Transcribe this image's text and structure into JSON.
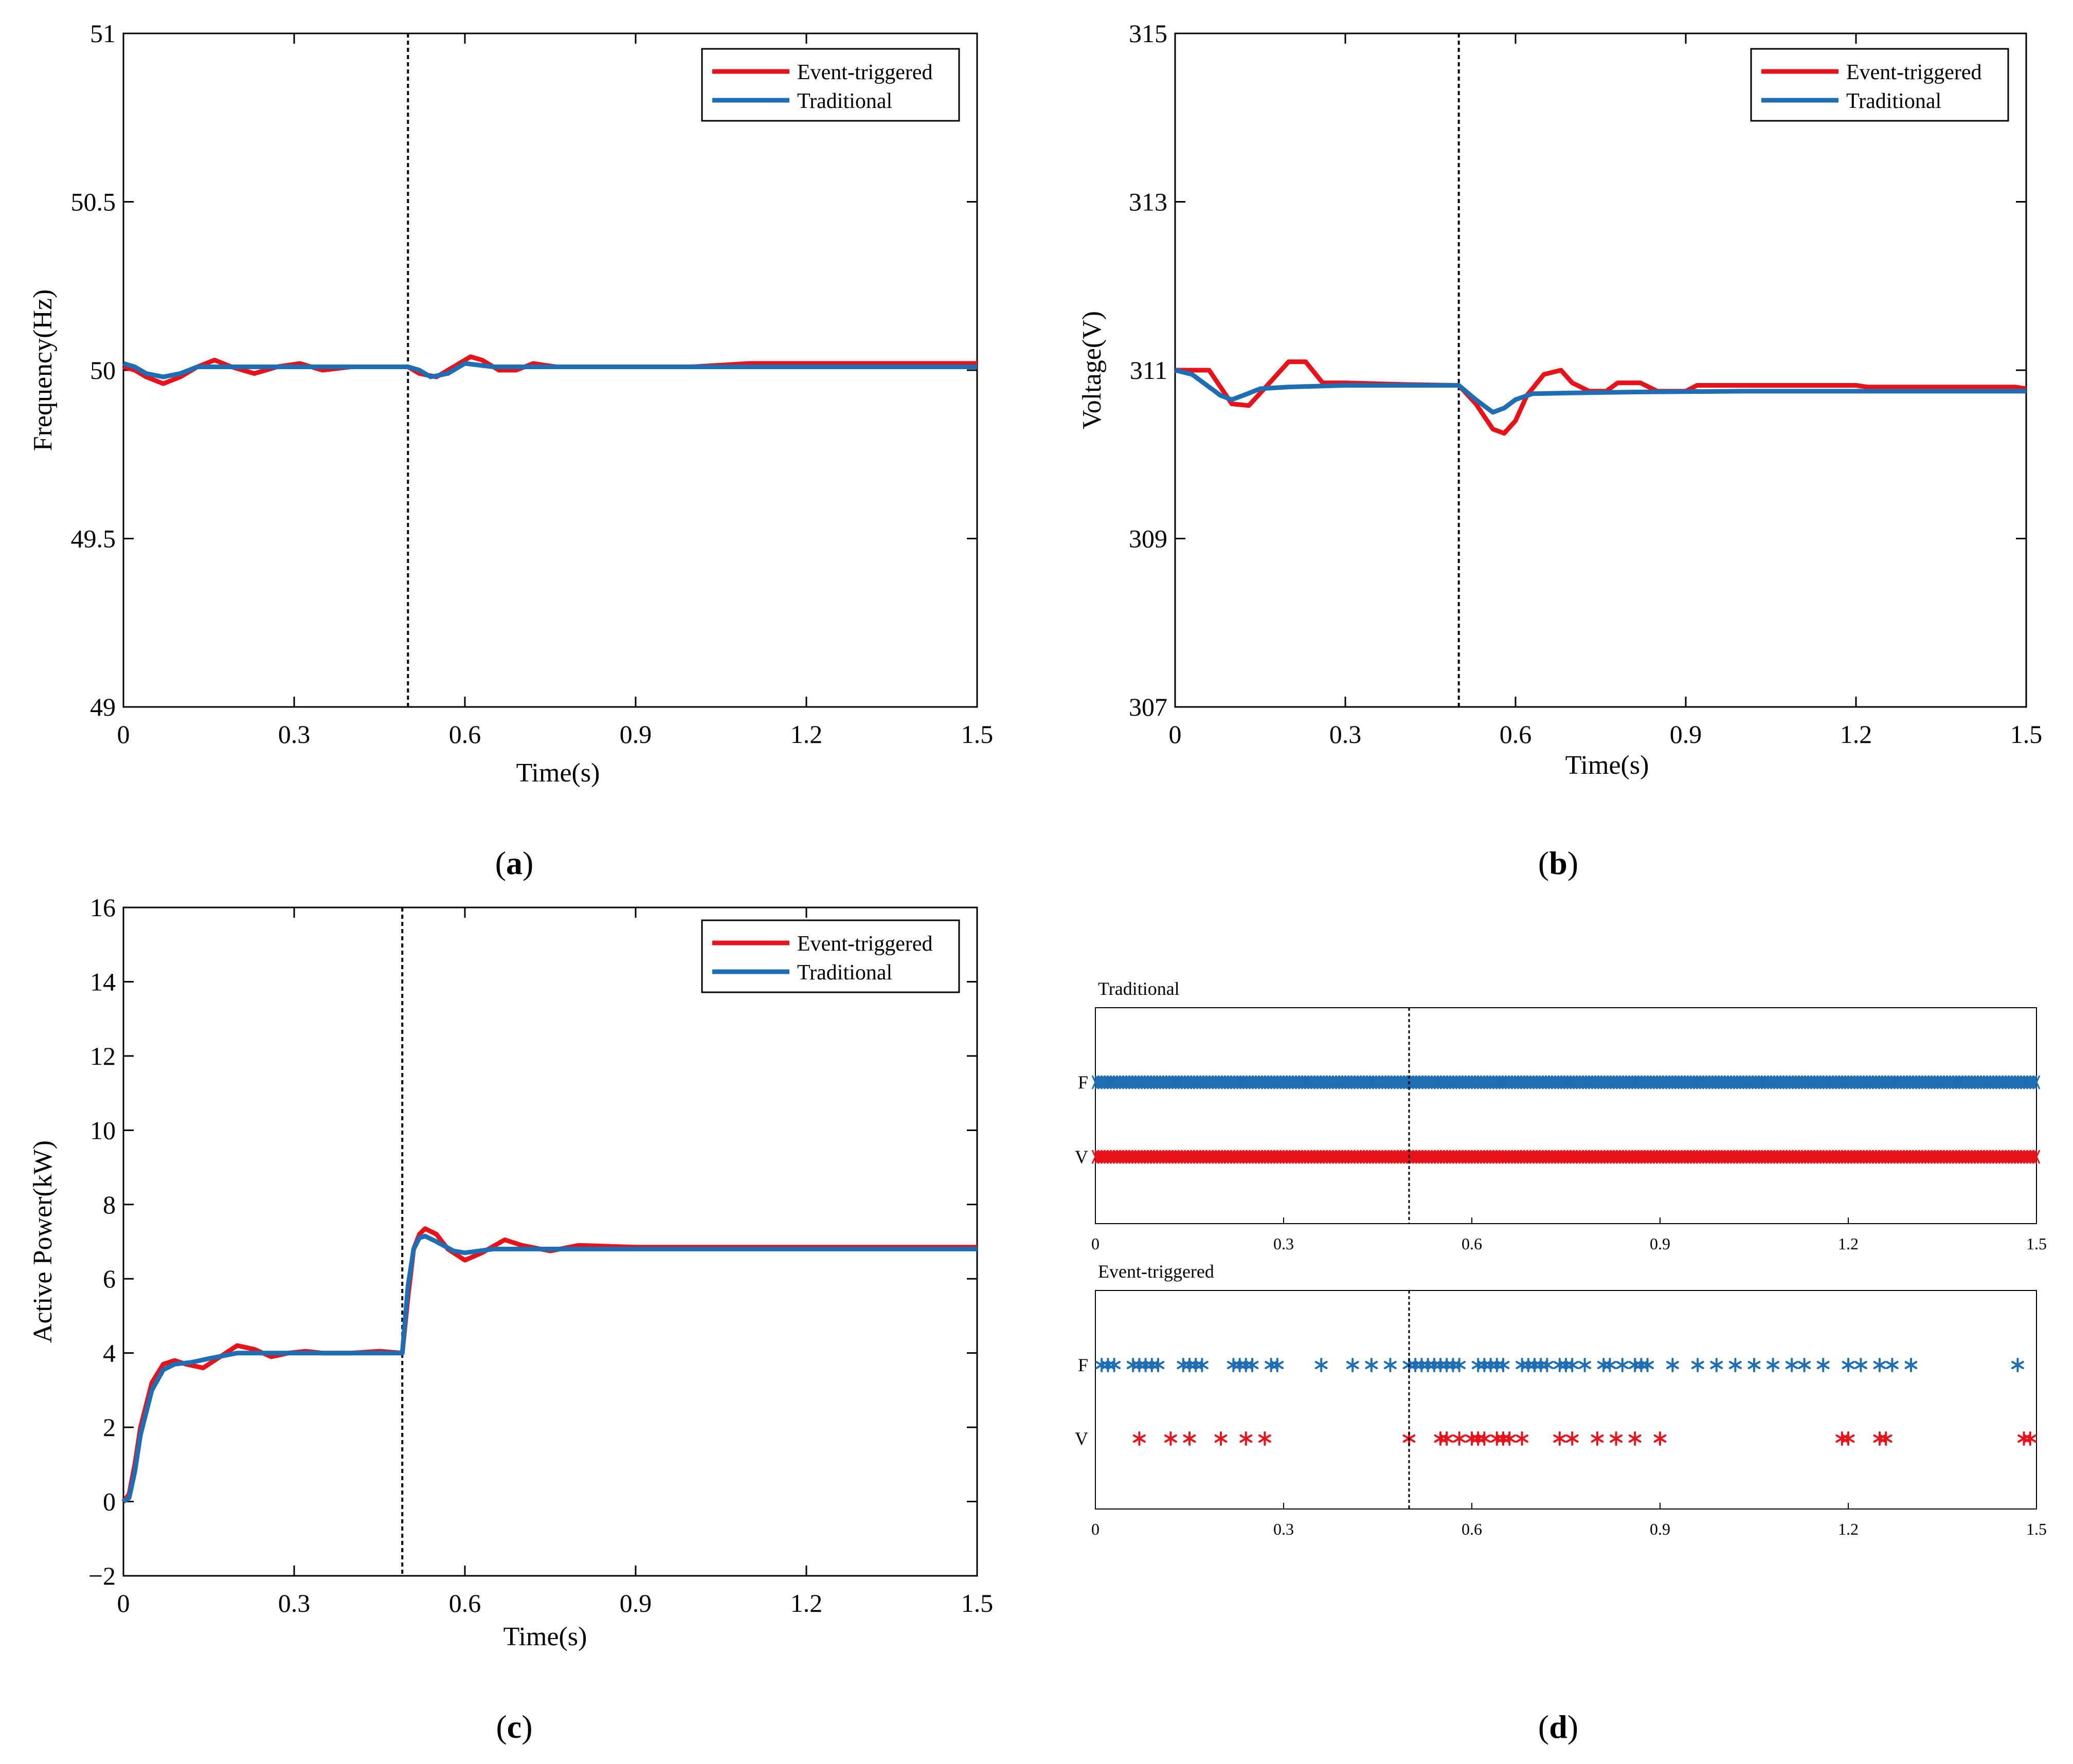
{
  "colors": {
    "event": "#e8121b",
    "traditional": "#1f6db3",
    "axis": "#000000",
    "vline": "#000000"
  },
  "chart_data": [
    {
      "id": "a",
      "type": "line",
      "caption": {
        "open": "(",
        "letter": "a",
        "close": ")"
      },
      "xlabel": "Time(s)",
      "ylabel": "Frequency(Hz)",
      "xlim": [
        0,
        1.5
      ],
      "ylim": [
        49,
        51
      ],
      "xticks": [
        0,
        0.3,
        0.6,
        0.9,
        1.2,
        1.5
      ],
      "xtick_labels": [
        "0",
        "0.3",
        "0.6",
        "0.9",
        "1.2",
        "1.5"
      ],
      "yticks": [
        49,
        49.5,
        50,
        50.5,
        51
      ],
      "ytick_labels": [
        "49",
        "49.5",
        "50",
        "50.5",
        "51"
      ],
      "event_line_x": 0.5,
      "legend": {
        "position": "top-right",
        "entries": [
          "Event-triggered",
          "Traditional"
        ]
      },
      "series": [
        {
          "name": "Event-triggered",
          "color": "#e8121b",
          "x": [
            0,
            0.02,
            0.04,
            0.07,
            0.1,
            0.13,
            0.16,
            0.19,
            0.23,
            0.27,
            0.31,
            0.35,
            0.4,
            0.45,
            0.5,
            0.52,
            0.55,
            0.58,
            0.61,
            0.63,
            0.66,
            0.69,
            0.72,
            0.76,
            0.8,
            0.85,
            0.9,
            1.0,
            1.1,
            1.2,
            1.3,
            1.4,
            1.5
          ],
          "y": [
            50.01,
            50.0,
            49.98,
            49.96,
            49.98,
            50.01,
            50.03,
            50.01,
            49.99,
            50.01,
            50.02,
            50.0,
            50.01,
            50.01,
            50.01,
            49.99,
            49.98,
            50.01,
            50.04,
            50.03,
            50.0,
            50.0,
            50.02,
            50.01,
            50.01,
            50.01,
            50.01,
            50.01,
            50.02,
            50.02,
            50.02,
            50.02,
            50.02
          ]
        },
        {
          "name": "Traditional",
          "color": "#1f6db3",
          "x": [
            0,
            0.02,
            0.04,
            0.07,
            0.1,
            0.13,
            0.2,
            0.3,
            0.4,
            0.5,
            0.52,
            0.54,
            0.57,
            0.6,
            0.65,
            0.7,
            0.8,
            1.0,
            1.2,
            1.5
          ],
          "y": [
            50.02,
            50.01,
            49.99,
            49.98,
            49.99,
            50.01,
            50.01,
            50.01,
            50.01,
            50.01,
            50.0,
            49.98,
            49.99,
            50.02,
            50.01,
            50.01,
            50.01,
            50.01,
            50.01,
            50.01
          ]
        }
      ]
    },
    {
      "id": "b",
      "type": "line",
      "caption": {
        "open": "(",
        "letter": "b",
        "close": ")"
      },
      "xlabel": "Time(s)",
      "ylabel": "Voltage(V)",
      "xlim": [
        0,
        1.5
      ],
      "ylim": [
        307,
        315
      ],
      "xticks": [
        0,
        0.3,
        0.6,
        0.9,
        1.2,
        1.5
      ],
      "xtick_labels": [
        "0",
        "0.3",
        "0.6",
        "0.9",
        "1.2",
        "1.5"
      ],
      "yticks": [
        307,
        309,
        311,
        313,
        315
      ],
      "ytick_labels": [
        "307",
        "309",
        "311",
        "313",
        "315"
      ],
      "event_line_x": 0.5,
      "legend": {
        "position": "top-right",
        "entries": [
          "Event-triggered",
          "Traditional"
        ]
      },
      "series": [
        {
          "name": "Event-triggered",
          "color": "#e8121b",
          "x": [
            0,
            0.06,
            0.1,
            0.13,
            0.16,
            0.2,
            0.23,
            0.26,
            0.3,
            0.4,
            0.5,
            0.53,
            0.56,
            0.58,
            0.6,
            0.62,
            0.65,
            0.68,
            0.7,
            0.73,
            0.76,
            0.78,
            0.82,
            0.85,
            0.9,
            0.92,
            1.0,
            1.1,
            1.2,
            1.22,
            1.3,
            1.4,
            1.48,
            1.5
          ],
          "y": [
            311.0,
            311.0,
            310.6,
            310.58,
            310.8,
            311.1,
            311.1,
            310.85,
            310.85,
            310.83,
            310.82,
            310.6,
            310.3,
            310.25,
            310.4,
            310.7,
            310.95,
            311.0,
            310.85,
            310.75,
            310.75,
            310.85,
            310.85,
            310.75,
            310.75,
            310.82,
            310.82,
            310.82,
            310.82,
            310.8,
            310.8,
            310.8,
            310.8,
            310.78
          ]
        },
        {
          "name": "Traditional",
          "color": "#1f6db3",
          "x": [
            0,
            0.03,
            0.06,
            0.08,
            0.1,
            0.12,
            0.15,
            0.2,
            0.3,
            0.4,
            0.5,
            0.53,
            0.56,
            0.58,
            0.6,
            0.63,
            0.7,
            0.8,
            1.0,
            1.2,
            1.5
          ],
          "y": [
            311.0,
            310.95,
            310.8,
            310.7,
            310.65,
            310.7,
            310.78,
            310.8,
            310.82,
            310.82,
            310.82,
            310.65,
            310.5,
            310.55,
            310.65,
            310.72,
            310.73,
            310.74,
            310.75,
            310.75,
            310.75
          ]
        }
      ]
    },
    {
      "id": "c",
      "type": "line",
      "caption": {
        "open": "(",
        "letter": "c",
        "close": ")"
      },
      "xlabel": "Time(s)",
      "ylabel": "Active Power(kW)",
      "xlim": [
        0,
        1.5
      ],
      "ylim": [
        -2,
        16
      ],
      "xticks": [
        0,
        0.3,
        0.6,
        0.9,
        1.2,
        1.5
      ],
      "xtick_labels": [
        "0",
        "0.3",
        "0.6",
        "0.9",
        "1.2",
        "1.5"
      ],
      "yticks": [
        -2,
        0,
        2,
        4,
        6,
        8,
        10,
        12,
        14,
        16
      ],
      "ytick_labels": [
        "−2",
        "0",
        "2",
        "4",
        "6",
        "8",
        "10",
        "12",
        "14",
        "16"
      ],
      "event_line_x": 0.49,
      "legend": {
        "position": "top-right",
        "entries": [
          "Event-triggered",
          "Traditional"
        ]
      },
      "series": [
        {
          "name": "Event-triggered",
          "color": "#e8121b",
          "x": [
            0,
            0.01,
            0.02,
            0.03,
            0.05,
            0.07,
            0.09,
            0.11,
            0.14,
            0.17,
            0.2,
            0.23,
            0.26,
            0.29,
            0.32,
            0.35,
            0.4,
            0.45,
            0.49,
            0.5,
            0.51,
            0.52,
            0.53,
            0.55,
            0.57,
            0.6,
            0.63,
            0.67,
            0.7,
            0.75,
            0.8,
            0.9,
            1.0,
            1.2,
            1.5
          ],
          "y": [
            0,
            0.2,
            1.0,
            2.0,
            3.2,
            3.7,
            3.8,
            3.7,
            3.6,
            3.9,
            4.2,
            4.1,
            3.9,
            4.0,
            4.05,
            4.0,
            4.0,
            4.05,
            4.0,
            5.5,
            6.8,
            7.2,
            7.35,
            7.2,
            6.8,
            6.5,
            6.7,
            7.05,
            6.9,
            6.75,
            6.9,
            6.85,
            6.85,
            6.85,
            6.85
          ]
        },
        {
          "name": "Traditional",
          "color": "#1f6db3",
          "x": [
            0,
            0.01,
            0.02,
            0.03,
            0.05,
            0.07,
            0.09,
            0.12,
            0.15,
            0.2,
            0.3,
            0.49,
            0.5,
            0.51,
            0.52,
            0.53,
            0.55,
            0.58,
            0.6,
            0.65,
            0.7,
            1.0,
            1.5
          ],
          "y": [
            0,
            0.1,
            0.8,
            1.8,
            3.0,
            3.55,
            3.7,
            3.75,
            3.85,
            4.0,
            4.0,
            4.0,
            5.8,
            6.8,
            7.1,
            7.15,
            7.0,
            6.75,
            6.7,
            6.8,
            6.8,
            6.8,
            6.8
          ]
        }
      ]
    },
    {
      "id": "d",
      "type": "scatter",
      "caption": {
        "open": "(",
        "letter": "d",
        "close": ")"
      },
      "xlim": [
        0,
        1.5
      ],
      "xticks": [
        0,
        0.3,
        0.6,
        0.9,
        1.2,
        1.5
      ],
      "xtick_labels": [
        "0",
        "0.3",
        "0.6",
        "0.9",
        "1.2",
        "1.5"
      ],
      "event_line_x": 0.5,
      "row_labels": [
        "F",
        "V"
      ],
      "panels": [
        {
          "title": "Traditional",
          "mode": "dense",
          "rows": [
            {
              "label": "F",
              "color": "#1f6db3",
              "x": []
            },
            {
              "label": "V",
              "color": "#e8121b",
              "x": []
            }
          ]
        },
        {
          "title": "Event-triggered",
          "mode": "sparse",
          "rows": [
            {
              "label": "F",
              "color": "#1f6db3",
              "x": [
                0.01,
                0.02,
                0.03,
                0.06,
                0.07,
                0.08,
                0.09,
                0.1,
                0.14,
                0.15,
                0.16,
                0.17,
                0.22,
                0.23,
                0.24,
                0.25,
                0.28,
                0.29,
                0.36,
                0.41,
                0.44,
                0.47,
                0.5,
                0.51,
                0.52,
                0.53,
                0.54,
                0.55,
                0.56,
                0.57,
                0.58,
                0.61,
                0.62,
                0.63,
                0.64,
                0.65,
                0.68,
                0.69,
                0.7,
                0.71,
                0.72,
                0.74,
                0.75,
                0.76,
                0.78,
                0.81,
                0.82,
                0.84,
                0.86,
                0.87,
                0.88,
                0.92,
                0.96,
                0.99,
                1.02,
                1.05,
                1.08,
                1.11,
                1.13,
                1.16,
                1.2,
                1.22,
                1.25,
                1.27,
                1.3,
                1.47
              ]
            },
            {
              "label": "V",
              "color": "#e8121b",
              "x": [
                0.07,
                0.12,
                0.15,
                0.2,
                0.24,
                0.27,
                0.5,
                0.55,
                0.56,
                0.58,
                0.6,
                0.61,
                0.62,
                0.64,
                0.65,
                0.66,
                0.68,
                0.74,
                0.76,
                0.8,
                0.83,
                0.86,
                0.9,
                1.19,
                1.2,
                1.25,
                1.26,
                1.48,
                1.49
              ]
            }
          ]
        }
      ]
    }
  ]
}
